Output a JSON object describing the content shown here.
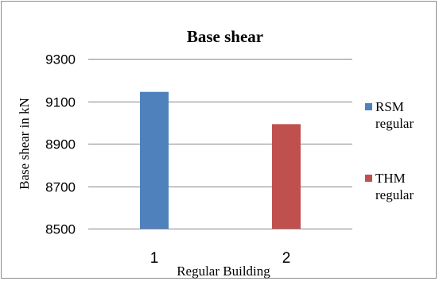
{
  "chart_data": {
    "type": "bar",
    "title": "Base shear",
    "xlabel": "Regular Building",
    "ylabel": "Base shear in kN",
    "categories": [
      "1",
      "2"
    ],
    "series": [
      {
        "name": "RSM regular",
        "name_lines": [
          "RSM",
          "regular"
        ],
        "color": "#4f81bd",
        "values": [
          9144,
          null
        ]
      },
      {
        "name": "THM regular",
        "name_lines": [
          "THM",
          "regular"
        ],
        "color": "#c0504d",
        "values": [
          null,
          8992
        ]
      }
    ],
    "ylim": [
      8500,
      9300
    ],
    "yticks": [
      8500,
      8700,
      8900,
      9100,
      9300
    ],
    "grid": true,
    "gridline_color": "#868686",
    "legend_position": "right"
  }
}
